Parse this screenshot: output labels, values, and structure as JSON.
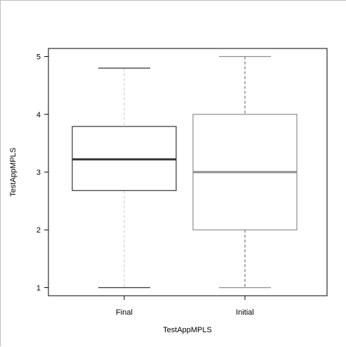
{
  "chart_data": {
    "type": "box",
    "title": "",
    "xlabel": "TestAppMPLS",
    "ylabel": "TestAppMPLS",
    "categories": [
      "Final",
      "Initial"
    ],
    "ylim": [
      0.86,
      5.14
    ],
    "yticks": [
      1,
      2,
      3,
      4,
      5
    ],
    "grid": false,
    "boxes": [
      {
        "category": "Final",
        "whisker_low": 1,
        "q1": 2.68,
        "median": 3.22,
        "q3": 3.79,
        "whisker_high": 4.8
      },
      {
        "category": "Initial",
        "whisker_low": 1,
        "q1": 2.0,
        "median": 3.0,
        "q3": 4.0,
        "whisker_high": 5
      }
    ],
    "colors": {
      "Final": "#333333",
      "Initial": "#8c8c8c",
      "Final_whisker": "#c8c8c8",
      "Initial_whisker": "#555555"
    }
  }
}
